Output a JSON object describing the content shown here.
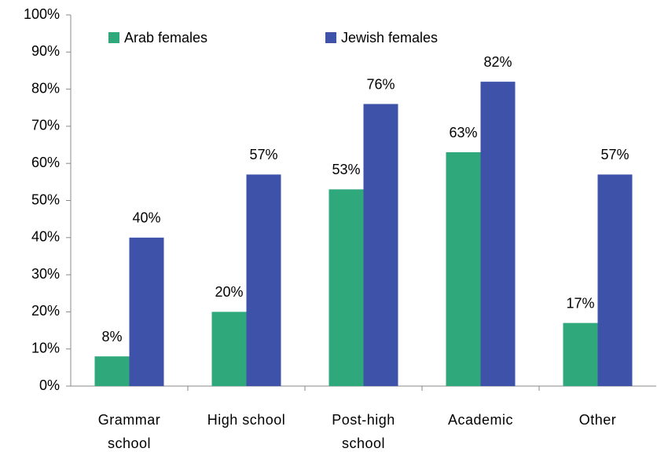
{
  "chart_data": {
    "type": "bar",
    "categories": [
      "Grammar school",
      "High school",
      "Post-high school",
      "Academic",
      "Other"
    ],
    "series": [
      {
        "name": "Arab females",
        "color": "#2fa87b",
        "values": [
          8,
          20,
          53,
          63,
          17
        ],
        "value_labels": [
          "8%",
          "20%",
          "53%",
          "63%",
          "17%"
        ]
      },
      {
        "name": "Jewish females",
        "color": "#3d52a8",
        "values": [
          40,
          57,
          76,
          82,
          57
        ],
        "value_labels": [
          "40%",
          "57%",
          "76%",
          "82%",
          "57%"
        ]
      }
    ],
    "ylim": [
      0,
      100
    ],
    "yticks": [
      {
        "value": 0,
        "label": "0%"
      },
      {
        "value": 10,
        "label": "10%"
      },
      {
        "value": 20,
        "label": "20%"
      },
      {
        "value": 30,
        "label": "30%"
      },
      {
        "value": 40,
        "label": "40%"
      },
      {
        "value": 50,
        "label": "50%"
      },
      {
        "value": 60,
        "label": "60%"
      },
      {
        "value": 70,
        "label": "70%"
      },
      {
        "value": 80,
        "label": "80%"
      },
      {
        "value": 90,
        "label": "90%"
      },
      {
        "value": 100,
        "label": "100%"
      }
    ],
    "grid": false,
    "legend": "top-left"
  }
}
